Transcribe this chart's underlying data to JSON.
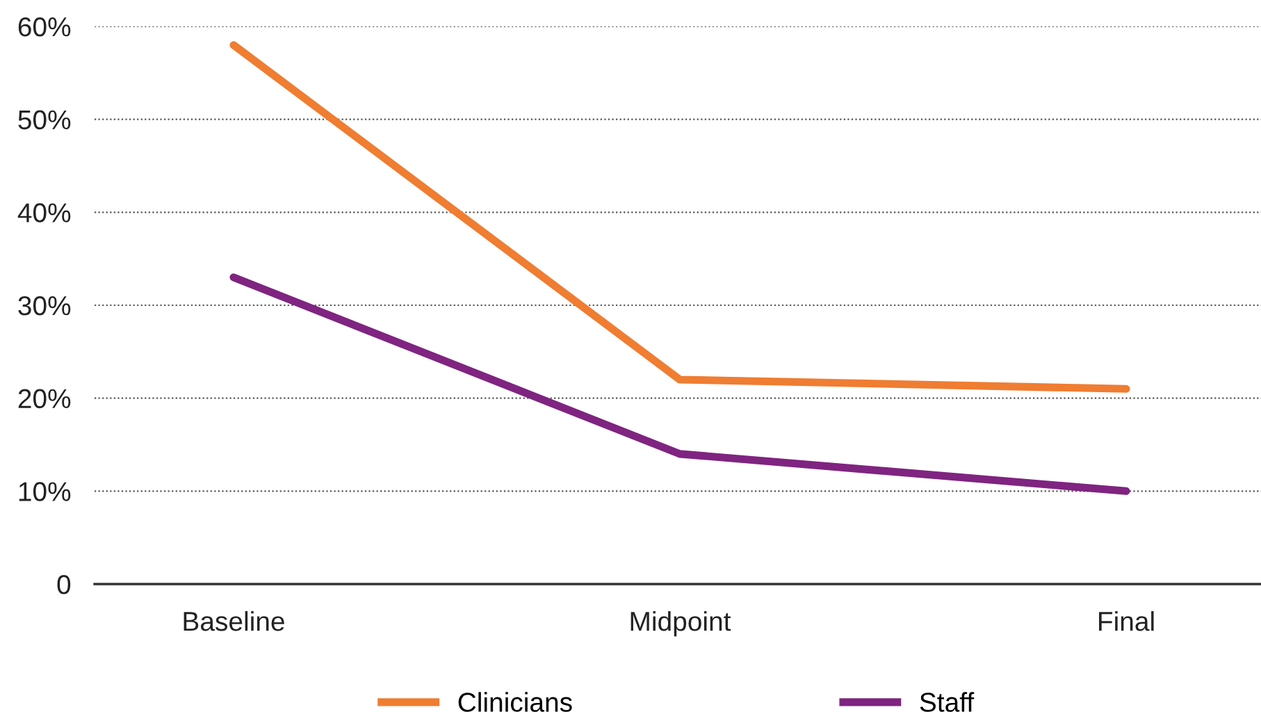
{
  "chart_data": {
    "type": "line",
    "categories": [
      "Baseline",
      "Midpoint",
      "Final"
    ],
    "series": [
      {
        "name": "Clinicians",
        "color": "#ef7d32",
        "values": [
          58,
          22,
          21
        ]
      },
      {
        "name": "Staff",
        "color": "#7f2480",
        "values": [
          33,
          14,
          10
        ]
      }
    ],
    "ylim": [
      0,
      60
    ],
    "yticks": [
      0,
      {
        "value": 10,
        "label": "10%"
      },
      {
        "value": 20,
        "label": "20%"
      },
      {
        "value": 30,
        "label": "30%"
      },
      {
        "value": 40,
        "label": "40%"
      },
      {
        "value": 50,
        "label": "50%"
      },
      {
        "value": 60,
        "label": "60%"
      }
    ],
    "grid": "y",
    "legend": "bottom",
    "marker": "none",
    "line_style": "solid"
  }
}
